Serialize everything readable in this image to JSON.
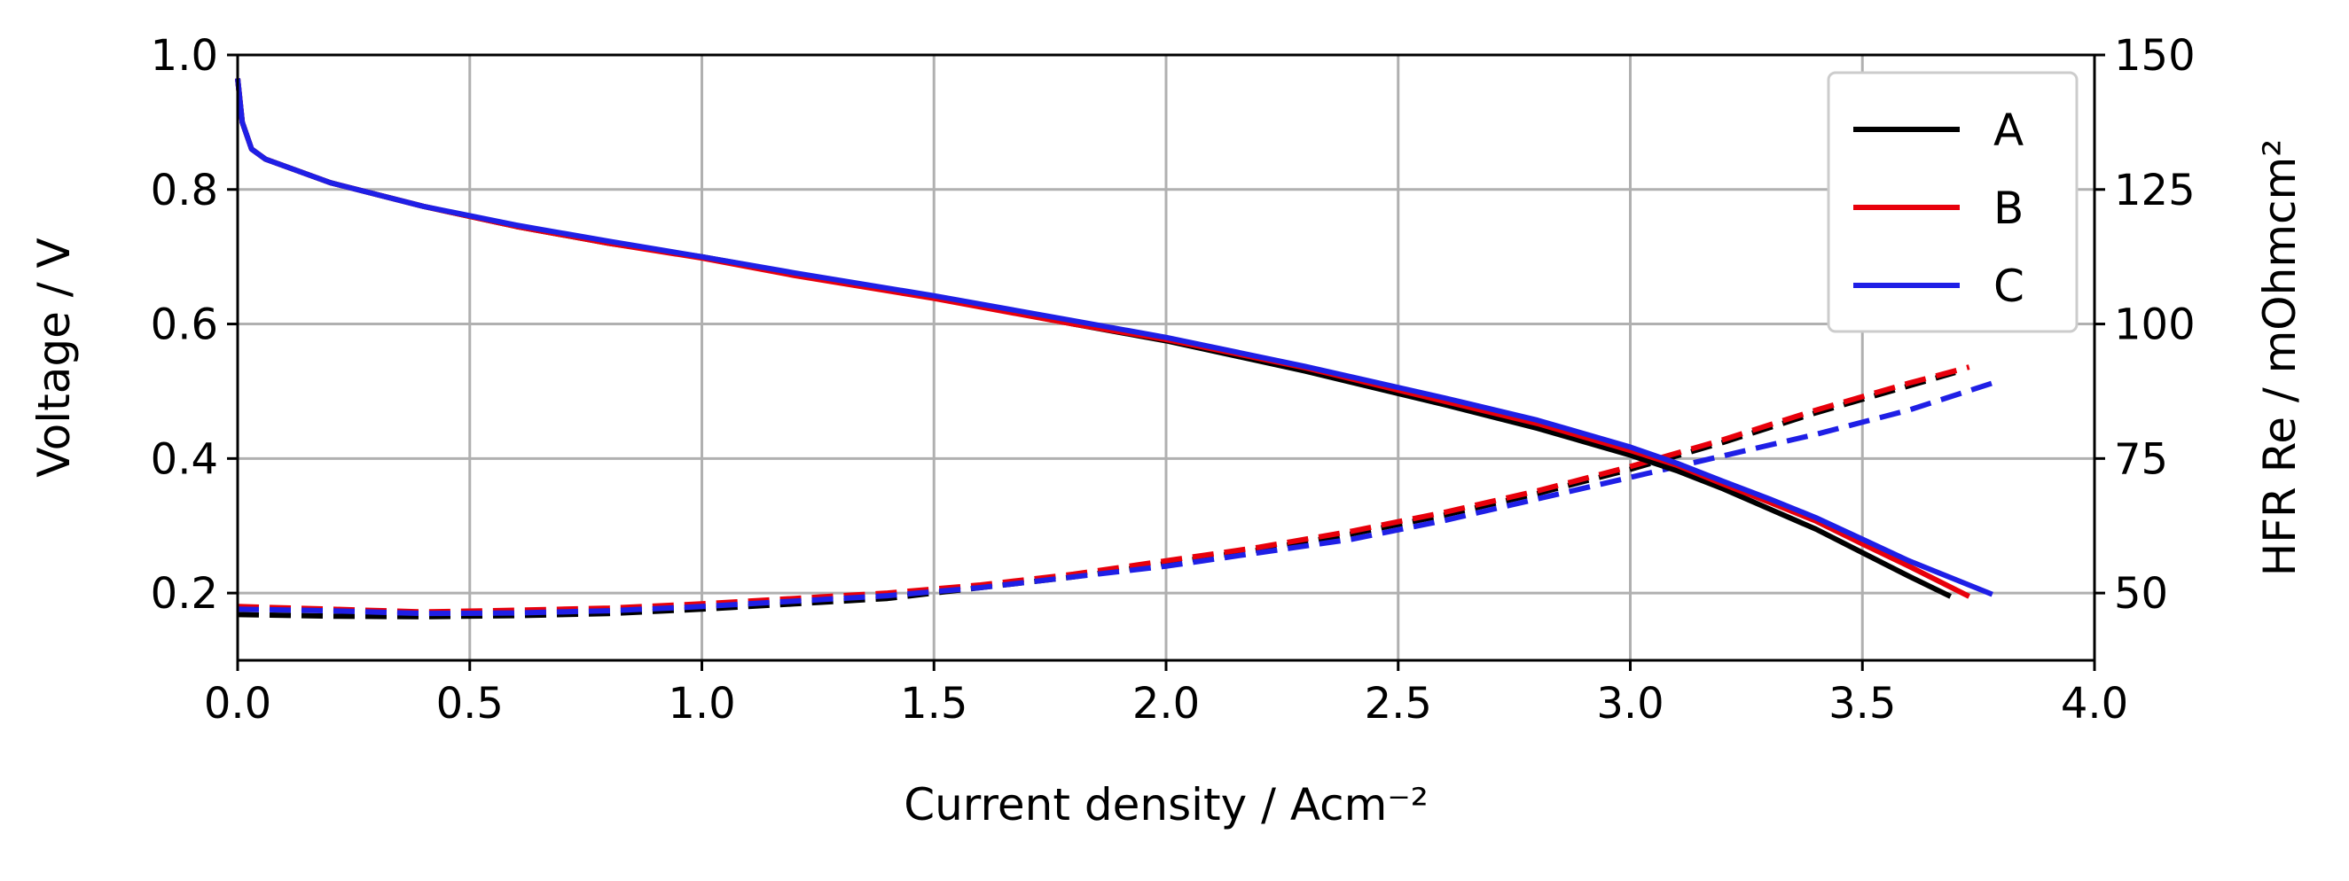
{
  "chart_data": {
    "type": "line",
    "title": "",
    "xlabel": "Current density / Acm⁻²",
    "ylabel": "Voltage / V",
    "y2label": "HFR Re / mOhmcm²",
    "xlim": [
      0.0,
      4.0
    ],
    "ylim": [
      0.1,
      1.0
    ],
    "y2lim": [
      37.5,
      150
    ],
    "x_ticks": [
      "0.0",
      "0.5",
      "1.0",
      "1.5",
      "2.0",
      "2.5",
      "3.0",
      "3.5",
      "4.0"
    ],
    "y_ticks": [
      "0.2",
      "0.4",
      "0.6",
      "0.8",
      "1.0"
    ],
    "y2_ticks": [
      "50",
      "75",
      "100",
      "125",
      "150"
    ],
    "grid": true,
    "legend_position": "top-right",
    "legend": [
      {
        "label": "A",
        "color": "#000000"
      },
      {
        "label": "B",
        "color": "#e8000b"
      },
      {
        "label": "C",
        "color": "#1f1fe6"
      }
    ],
    "series": [
      {
        "name": "A",
        "color": "#000000",
        "axis": "left",
        "linestyle": "solid",
        "x": [
          0.0,
          0.01,
          0.03,
          0.06,
          0.1,
          0.2,
          0.4,
          0.6,
          0.8,
          1.0,
          1.2,
          1.5,
          1.8,
          2.0,
          2.3,
          2.6,
          2.8,
          3.0,
          3.1,
          3.2,
          3.3,
          3.4,
          3.5,
          3.6,
          3.69
        ],
        "y": [
          0.965,
          0.9,
          0.86,
          0.845,
          0.835,
          0.81,
          0.775,
          0.745,
          0.72,
          0.7,
          0.675,
          0.64,
          0.6,
          0.575,
          0.53,
          0.48,
          0.445,
          0.405,
          0.382,
          0.355,
          0.325,
          0.295,
          0.26,
          0.225,
          0.195
        ]
      },
      {
        "name": "B",
        "color": "#e8000b",
        "axis": "left",
        "linestyle": "solid",
        "x": [
          0.0,
          0.01,
          0.03,
          0.06,
          0.1,
          0.2,
          0.4,
          0.6,
          0.8,
          1.0,
          1.2,
          1.5,
          1.8,
          2.0,
          2.3,
          2.6,
          2.8,
          3.0,
          3.1,
          3.2,
          3.3,
          3.4,
          3.5,
          3.6,
          3.73
        ],
        "y": [
          0.965,
          0.9,
          0.86,
          0.845,
          0.835,
          0.81,
          0.775,
          0.745,
          0.72,
          0.698,
          0.672,
          0.638,
          0.6,
          0.577,
          0.535,
          0.485,
          0.452,
          0.412,
          0.39,
          0.362,
          0.335,
          0.307,
          0.273,
          0.24,
          0.195
        ]
      },
      {
        "name": "C",
        "color": "#1f1fe6",
        "axis": "left",
        "linestyle": "solid",
        "x": [
          0.0,
          0.01,
          0.03,
          0.06,
          0.1,
          0.2,
          0.4,
          0.6,
          0.8,
          1.0,
          1.2,
          1.5,
          1.8,
          2.0,
          2.3,
          2.6,
          2.8,
          3.0,
          3.1,
          3.2,
          3.3,
          3.4,
          3.5,
          3.6,
          3.78
        ],
        "y": [
          0.965,
          0.9,
          0.86,
          0.845,
          0.835,
          0.81,
          0.775,
          0.747,
          0.723,
          0.7,
          0.676,
          0.642,
          0.605,
          0.58,
          0.537,
          0.49,
          0.457,
          0.417,
          0.393,
          0.366,
          0.34,
          0.312,
          0.28,
          0.248,
          0.198
        ]
      },
      {
        "name": "A",
        "color": "#000000",
        "axis": "right",
        "linestyle": "dashed",
        "x": [
          0.0,
          0.2,
          0.4,
          0.6,
          0.8,
          1.0,
          1.2,
          1.4,
          1.6,
          1.8,
          2.0,
          2.2,
          2.4,
          2.6,
          2.8,
          3.0,
          3.2,
          3.4,
          3.6,
          3.7
        ],
        "y": [
          46.0,
          45.7,
          45.6,
          45.8,
          46.2,
          47.0,
          48.0,
          49.0,
          51.0,
          53.0,
          55.5,
          58.0,
          61.0,
          64.5,
          68.5,
          73.0,
          78.0,
          83.5,
          88.5,
          91.0
        ]
      },
      {
        "name": "B",
        "color": "#e8000b",
        "axis": "right",
        "linestyle": "dashed",
        "x": [
          0.0,
          0.2,
          0.4,
          0.6,
          0.8,
          1.0,
          1.2,
          1.4,
          1.6,
          1.8,
          2.0,
          2.2,
          2.4,
          2.6,
          2.8,
          3.0,
          3.2,
          3.4,
          3.6,
          3.73
        ],
        "y": [
          47.5,
          47.0,
          46.5,
          46.8,
          47.2,
          48.0,
          49.0,
          50.0,
          51.5,
          53.5,
          56.0,
          58.5,
          61.5,
          65.0,
          69.0,
          73.5,
          78.5,
          84.0,
          89.0,
          92.0
        ]
      },
      {
        "name": "C",
        "color": "#1f1fe6",
        "axis": "right",
        "linestyle": "dashed",
        "x": [
          0.0,
          0.2,
          0.4,
          0.6,
          0.8,
          1.0,
          1.2,
          1.4,
          1.6,
          1.8,
          2.0,
          2.2,
          2.4,
          2.6,
          2.8,
          3.0,
          3.2,
          3.4,
          3.6,
          3.78
        ],
        "y": [
          47.0,
          46.7,
          46.2,
          46.3,
          46.7,
          47.5,
          48.5,
          49.5,
          51.0,
          53.0,
          55.0,
          57.5,
          60.0,
          63.5,
          67.5,
          71.5,
          75.5,
          79.5,
          84.0,
          89.0
        ]
      }
    ]
  }
}
